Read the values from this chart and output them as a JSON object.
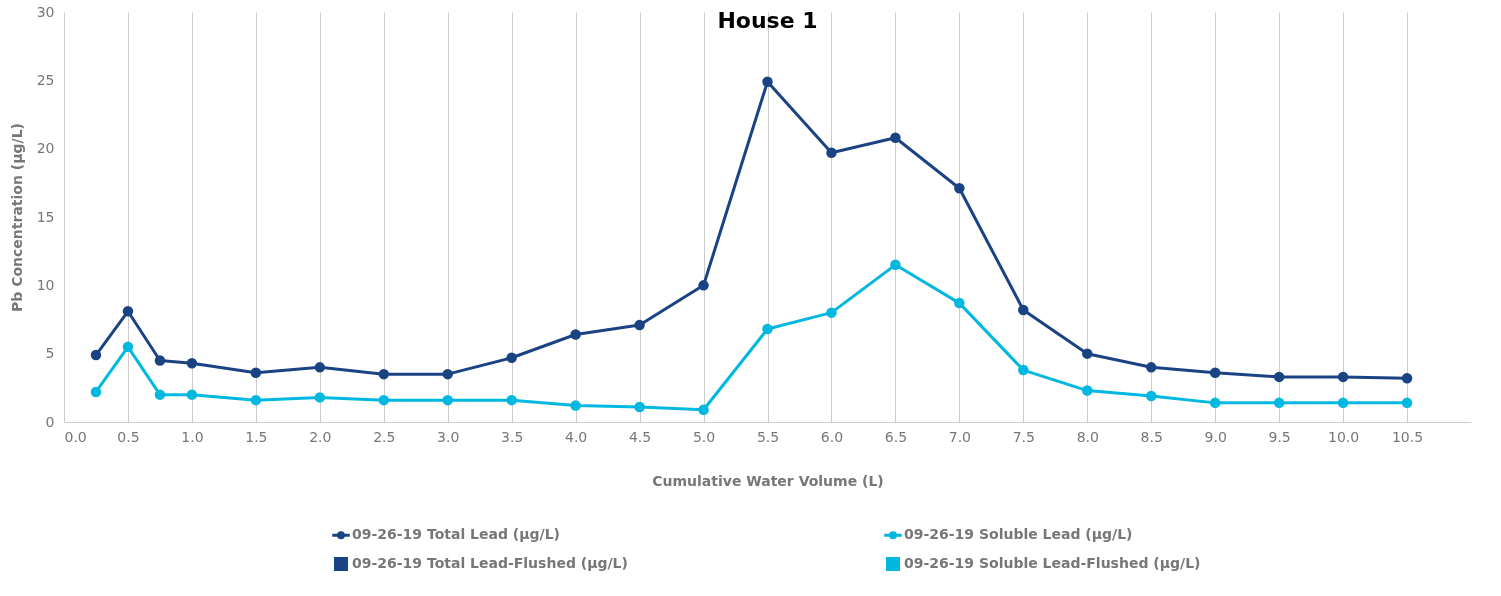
{
  "chart_data": {
    "type": "line",
    "title": "House 1",
    "xlabel": "Cumulative Water Volume (L)",
    "ylabel": "Pb Concentration  (µg/L)",
    "x": [
      0.25,
      0.5,
      0.75,
      1.0,
      1.5,
      2.0,
      2.5,
      3.0,
      3.5,
      4.0,
      4.5,
      5.0,
      5.5,
      6.0,
      6.5,
      7.0,
      7.5,
      8.0,
      8.5,
      9.0,
      9.5,
      10.0,
      10.5
    ],
    "series": [
      {
        "name": "09-26-19 Total Lead (µg/L)",
        "color": "#1a4384",
        "values": [
          4.9,
          8.1,
          4.5,
          4.3,
          3.6,
          4.0,
          3.5,
          3.5,
          4.7,
          6.4,
          7.1,
          10.0,
          24.9,
          19.7,
          20.8,
          17.1,
          8.2,
          5.0,
          4.0,
          3.6,
          3.3,
          3.3,
          3.2
        ]
      },
      {
        "name": "09-26-19 Soluble Lead (µg/L)",
        "color": "#00b8e0",
        "values": [
          2.2,
          5.5,
          2.0,
          2.0,
          1.6,
          1.8,
          1.6,
          1.6,
          1.6,
          1.2,
          1.1,
          0.9,
          6.8,
          8.0,
          11.5,
          8.7,
          3.8,
          2.3,
          1.9,
          1.4,
          1.4,
          1.4,
          1.4
        ]
      },
      {
        "name": "09-26-19 Total Lead-Flushed (µg/L)",
        "type": "scatter",
        "marker": "square",
        "color": "#1a4384",
        "values": [
          null,
          null,
          null,
          null,
          null,
          null,
          null,
          null,
          null,
          null,
          null,
          null,
          null,
          null,
          null,
          null,
          null,
          null,
          null,
          null,
          null,
          null,
          null
        ]
      },
      {
        "name": "09-26-19 Soluble Lead-Flushed (µg/L)",
        "type": "scatter",
        "marker": "square",
        "color": "#00b8e0",
        "values": [
          null,
          null,
          null,
          null,
          null,
          null,
          null,
          null,
          null,
          null,
          null,
          null,
          null,
          null,
          null,
          null,
          null,
          null,
          null,
          null,
          null,
          null,
          null
        ]
      }
    ],
    "marker": "circle",
    "line_style": "solid",
    "xlim": [
      0,
      11
    ],
    "xticks": [
      {
        "value": 0,
        "label": "0.0"
      },
      0.5,
      {
        "value": 1,
        "label": "1.0"
      },
      1.5,
      {
        "value": 2,
        "label": "2.0"
      },
      2.5,
      {
        "value": 3,
        "label": "3.0"
      },
      3.5,
      {
        "value": 4,
        "label": "4.0"
      },
      4.5,
      {
        "value": 5,
        "label": "5.0"
      },
      5.5,
      {
        "value": 6,
        "label": "6.0"
      },
      6.5,
      {
        "value": 7,
        "label": "7.0"
      },
      7.5,
      {
        "value": 8,
        "label": "8.0"
      },
      8.5,
      {
        "value": 9,
        "label": "9.0"
      },
      9.5,
      {
        "value": 10,
        "label": "10.0"
      },
      10.5
    ],
    "ylim": [
      0,
      30
    ],
    "yticks": [
      0,
      5,
      10,
      15,
      20,
      25,
      30
    ],
    "grid": "x",
    "legend": "bottom"
  }
}
